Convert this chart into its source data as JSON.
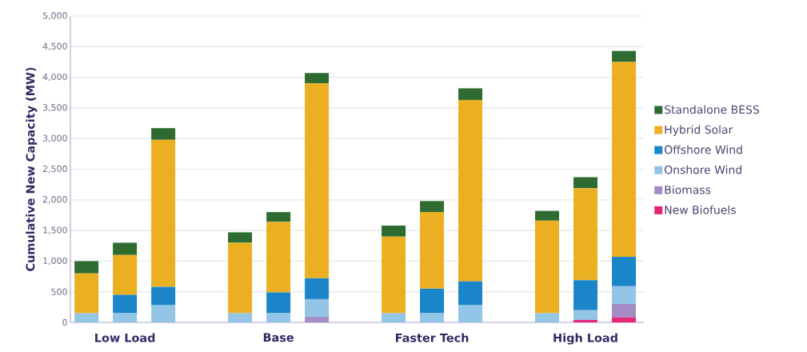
{
  "chart_data": {
    "type": "bar",
    "stacked": true,
    "ylabel": "Cumulative New Capacity (MW)",
    "categories": [
      null,
      "Low Load",
      null,
      null,
      null,
      "Base",
      null,
      null,
      null,
      "Faster Tech",
      null,
      null,
      null,
      "High Load",
      null
    ],
    "series": [
      {
        "name": "New Biofuels",
        "color": "#e6267a",
        "values": [
          null,
          null,
          null,
          null,
          null,
          null,
          null,
          null,
          null,
          null,
          null,
          null,
          null,
          40,
          80
        ]
      },
      {
        "name": "Biomass",
        "color": "#a48cc4",
        "values": [
          null,
          null,
          null,
          null,
          null,
          null,
          90,
          null,
          null,
          null,
          null,
          null,
          null,
          null,
          220
        ]
      },
      {
        "name": "Onshore Wind",
        "color": "#92c5e6",
        "values": [
          150,
          150,
          280,
          null,
          150,
          150,
          290,
          null,
          150,
          150,
          280,
          null,
          150,
          160,
          290
        ]
      },
      {
        "name": "Offshore Wind",
        "color": "#1a85c8",
        "values": [
          null,
          300,
          300,
          null,
          null,
          340,
          340,
          null,
          null,
          400,
          390,
          null,
          null,
          490,
          480
        ]
      },
      {
        "name": "Hybrid Solar",
        "color": "#ebb021",
        "values": [
          650,
          650,
          2400,
          null,
          1150,
          1150,
          3180,
          null,
          1250,
          1250,
          2960,
          null,
          1510,
          1500,
          3180
        ]
      },
      {
        "name": "Standalone BESS",
        "color": "#2e6b30",
        "values": [
          200,
          200,
          190,
          null,
          170,
          160,
          170,
          null,
          180,
          180,
          190,
          null,
          160,
          180,
          180
        ]
      }
    ],
    "ylim": [
      0,
      5000
    ],
    "yticks": [
      0,
      500,
      {
        "value": 1000,
        "label": "1,000"
      },
      {
        "value": 1500,
        "label": "1,500"
      },
      {
        "value": 2000,
        "label": "2,000"
      },
      {
        "value": 2500,
        "label": "2,500"
      },
      {
        "value": 3000,
        "label": "3,000"
      },
      {
        "value": 3500,
        "label": "3,500"
      },
      {
        "value": 4000,
        "label": "4,000"
      },
      {
        "value": 4500,
        "label": "4,500"
      },
      {
        "value": 5000,
        "label": "5,000"
      }
    ],
    "grid": "y",
    "legend": "right"
  }
}
